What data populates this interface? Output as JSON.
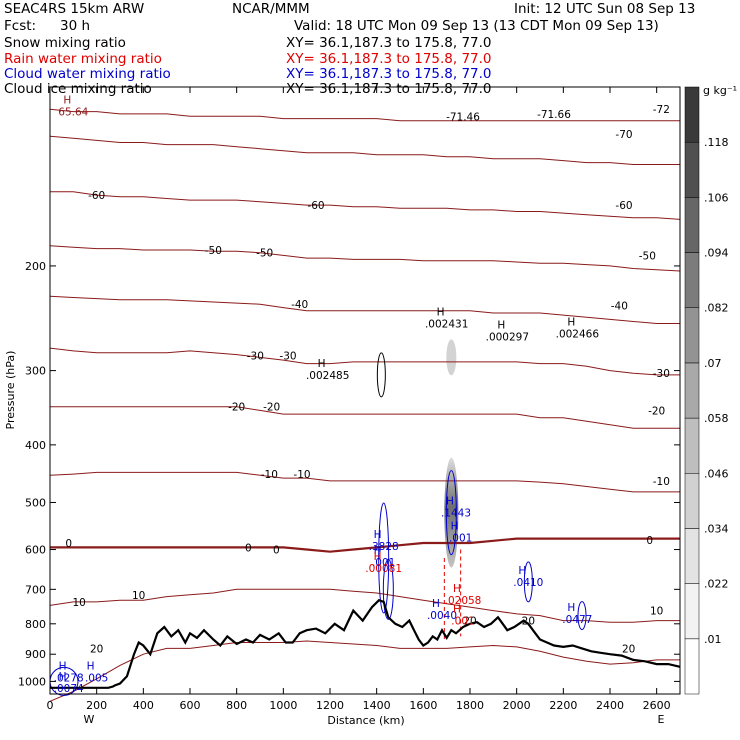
{
  "header": {
    "model_line": "SEAC4RS 15km ARW",
    "org": "NCAR/MMM",
    "init": "Init: 12 UTC Sun 08 Sep 13",
    "fcst_label": "Fcst:",
    "fcst_value": "30 h",
    "valid": "Valid: 18 UTC Mon 09 Sep 13 (13 CDT Mon 09 Sep 13)"
  },
  "fields": [
    {
      "label": "Snow mixing ratio",
      "xy": "XY=  36.1,187.3 to 175.8, 77.0",
      "color": "#000000"
    },
    {
      "label": "Rain water mixing ratio",
      "xy": "XY=  36.1,187.3 to 175.8, 77.0",
      "color": "#e00000"
    },
    {
      "label": "Cloud water mixing ratio",
      "xy": "XY=  36.1,187.3 to 175.8, 77.0",
      "color": "#0000cc"
    },
    {
      "label": "Cloud ice mixing ratio",
      "xy": "XY=  36.1,187.3 to 175.8, 77.0",
      "color": "#000000"
    }
  ],
  "chart_data": {
    "type": "contour cross-section",
    "xlabel": "Distance (km)",
    "ylabel": "Pressure (hPa)",
    "xlim": [
      0,
      2700
    ],
    "ylim": [
      1050,
      100
    ],
    "y_log": true,
    "x_ticks": [
      0,
      200,
      400,
      600,
      800,
      1000,
      1200,
      1400,
      1600,
      1800,
      2000,
      2200,
      2400,
      2600
    ],
    "y_ticks": [
      200,
      300,
      400,
      500,
      600,
      700,
      800,
      900,
      1000
    ],
    "x_ends": {
      "left": "W",
      "right": "E"
    },
    "colorbar": {
      "unit": "g kg⁻¹",
      "levels": [
        ".01",
        ".022",
        ".034",
        ".046",
        ".058",
        ".07",
        ".082",
        ".094",
        ".106",
        ".118"
      ],
      "colors": [
        "#ffffff",
        "#f2f2f2",
        "#e3e3e3",
        "#d1d1d1",
        "#bebebe",
        "#a9a9a9",
        "#939393",
        "#7c7c7c",
        "#666666",
        "#505050",
        "#3a3a3a"
      ]
    },
    "temperature_contours": [
      {
        "t": 20,
        "p": [
          1080,
          1040,
          990,
          940,
          900,
          880,
          880,
          870,
          860,
          860,
          860,
          855,
          860,
          865,
          870,
          880,
          880,
          880,
          875,
          870,
          875,
          890,
          910,
          925,
          935,
          930,
          920,
          920
        ]
      },
      {
        "t": 10,
        "p": [
          745,
          735,
          735,
          730,
          730,
          720,
          715,
          710,
          700,
          700,
          700,
          700,
          700,
          705,
          710,
          720,
          730,
          740,
          750,
          760,
          770,
          775,
          790,
          790,
          795,
          795,
          790,
          790
        ]
      },
      {
        "t": 0,
        "p": [
          595,
          595,
          595,
          595,
          595,
          595,
          595,
          595,
          595,
          595,
          595,
          600,
          605,
          600,
          595,
          590,
          585,
          585,
          585,
          580,
          575,
          575,
          575,
          575,
          575,
          575,
          575,
          575
        ]
      },
      {
        "t": -10,
        "p": [
          450,
          448,
          445,
          445,
          445,
          445,
          445,
          445,
          445,
          450,
          455,
          455,
          460,
          460,
          460,
          460,
          460,
          460,
          460,
          460,
          460,
          462,
          465,
          470,
          475,
          480,
          480,
          480
        ]
      },
      {
        "t": -20,
        "p": [
          345,
          345,
          345,
          345,
          345,
          345,
          345,
          345,
          345,
          350,
          355,
          355,
          355,
          355,
          355,
          355,
          355,
          355,
          355,
          355,
          355,
          360,
          360,
          365,
          370,
          375,
          375,
          375
        ]
      },
      {
        "t": -30,
        "p": [
          275,
          278,
          280,
          280,
          280,
          280,
          278,
          280,
          282,
          285,
          288,
          292,
          292,
          290,
          290,
          290,
          290,
          290,
          290,
          290,
          290,
          292,
          292,
          295,
          300,
          303,
          305,
          305
        ]
      },
      {
        "t": -40,
        "p": [
          225,
          226,
          227,
          228,
          228,
          228,
          229,
          230,
          231,
          232,
          235,
          238,
          238,
          238,
          238,
          238,
          238,
          238,
          238,
          240,
          240,
          240,
          242,
          244,
          246,
          248,
          250,
          250
        ]
      },
      {
        "t": -50,
        "p": [
          185,
          186,
          187,
          187,
          188,
          188,
          188,
          189,
          189,
          190,
          192,
          194,
          194,
          195,
          195,
          195,
          196,
          196,
          196,
          196,
          197,
          198,
          198,
          199,
          200,
          202,
          203,
          204
        ]
      },
      {
        "t": -60,
        "p": [
          150,
          150,
          152,
          153,
          153,
          154,
          155,
          155,
          155,
          156,
          157,
          158,
          158,
          159,
          159,
          160,
          160,
          160,
          161,
          161,
          162,
          162,
          163,
          164,
          165,
          166,
          166,
          167
        ]
      },
      {
        "t": -70,
        "p": [
          121,
          122,
          123,
          124,
          124,
          125,
          125,
          125,
          126,
          127,
          128,
          129,
          129,
          129,
          130,
          130,
          130,
          131,
          131,
          132,
          132,
          132,
          133,
          134,
          134,
          135,
          135,
          135
        ]
      },
      {
        "t": -72,
        "p": [
          109,
          110,
          110,
          111,
          111,
          111,
          112,
          112,
          112,
          112,
          113,
          113,
          113,
          113,
          113,
          114,
          114,
          114,
          114,
          114,
          114,
          114,
          114,
          114,
          114,
          114,
          114,
          114
        ]
      }
    ],
    "contour_labels": [
      {
        "text": "-72",
        "x": 2620,
        "p": 109
      },
      {
        "text": "-71.46",
        "x": 1770,
        "p": 112
      },
      {
        "text": "-71.66",
        "x": 2160,
        "p": 111
      },
      {
        "text": "-70",
        "x": 2460,
        "p": 120
      },
      {
        "text": "-60",
        "x": 200,
        "p": 152
      },
      {
        "text": "-60",
        "x": 1140,
        "p": 158
      },
      {
        "text": "-60",
        "x": 2460,
        "p": 158
      },
      {
        "text": "-50",
        "x": 700,
        "p": 188
      },
      {
        "text": "-50",
        "x": 920,
        "p": 190
      },
      {
        "text": "-50",
        "x": 2560,
        "p": 192
      },
      {
        "text": "-40",
        "x": 1070,
        "p": 232
      },
      {
        "text": "-40",
        "x": 2440,
        "p": 233
      },
      {
        "text": "-30",
        "x": 880,
        "p": 283
      },
      {
        "text": "-30",
        "x": 1020,
        "p": 283
      },
      {
        "text": "-30",
        "x": 2620,
        "p": 303
      },
      {
        "text": "-20",
        "x": 800,
        "p": 345
      },
      {
        "text": "-20",
        "x": 950,
        "p": 345
      },
      {
        "text": "-20",
        "x": 2600,
        "p": 350
      },
      {
        "text": "-10",
        "x": 940,
        "p": 448
      },
      {
        "text": "-10",
        "x": 1080,
        "p": 448
      },
      {
        "text": "-10",
        "x": 2620,
        "p": 460
      },
      {
        "text": "0",
        "x": 80,
        "p": 585
      },
      {
        "text": "0",
        "x": 850,
        "p": 595
      },
      {
        "text": "0",
        "x": 970,
        "p": 600
      },
      {
        "text": "0",
        "x": 2570,
        "p": 578
      },
      {
        "text": "10",
        "x": 125,
        "p": 735
      },
      {
        "text": "10",
        "x": 380,
        "p": 715
      },
      {
        "text": "10",
        "x": 2600,
        "p": 760
      },
      {
        "text": "20",
        "x": 200,
        "p": 880
      },
      {
        "text": "20",
        "x": 1800,
        "p": 790
      },
      {
        "text": "20",
        "x": 2050,
        "p": 790
      },
      {
        "text": "20",
        "x": 2480,
        "p": 880
      }
    ],
    "maxima": [
      {
        "text": ".002485",
        "x": 1190,
        "p": 305,
        "color": "#000000"
      },
      {
        "text": ".002431",
        "x": 1700,
        "p": 250,
        "color": "#000000"
      },
      {
        "text": ".000297",
        "x": 1960,
        "p": 263,
        "color": "#000000"
      },
      {
        "text": ".002466",
        "x": 2260,
        "p": 260,
        "color": "#000000"
      },
      {
        "text": ".1443",
        "x": 1740,
        "p": 520,
        "color": "#0000cc"
      },
      {
        "text": ".001",
        "x": 1760,
        "p": 573,
        "color": "#0000cc"
      },
      {
        "text": ".3828",
        "x": 1430,
        "p": 592,
        "color": "#0000cc"
      },
      {
        "text": ".001",
        "x": 1430,
        "p": 630,
        "color": "#0000cc"
      },
      {
        "text": ".00081",
        "x": 1430,
        "p": 645,
        "color": "#e00000"
      },
      {
        "text": ".0410",
        "x": 2050,
        "p": 680,
        "color": "#0000cc"
      },
      {
        "text": ".02058",
        "x": 1770,
        "p": 730,
        "color": "#e00000"
      },
      {
        "text": ".0040",
        "x": 1680,
        "p": 773,
        "color": "#0000cc"
      },
      {
        "text": ".001",
        "x": 1770,
        "p": 790,
        "color": "#e00000"
      },
      {
        "text": ".0477",
        "x": 2260,
        "p": 785,
        "color": "#0000cc"
      },
      {
        "text": "65.64",
        "x": 100,
        "p": 110,
        "color": "#8b1a1a"
      },
      {
        "text": ".0278",
        "x": 80,
        "p": 985,
        "color": "#0000cc"
      },
      {
        "text": ".005",
        "x": 200,
        "p": 985,
        "color": "#0000cc"
      },
      {
        "text": ".0074",
        "x": 80,
        "p": 1025,
        "color": "#0000cc"
      }
    ],
    "terrain": {
      "x": [
        0,
        100,
        200,
        250,
        270,
        280,
        300,
        330,
        360,
        380,
        400,
        430,
        460,
        490,
        520,
        550,
        580,
        600,
        630,
        660,
        700,
        730,
        760,
        800,
        840,
        870,
        900,
        940,
        980,
        1010,
        1040,
        1070,
        1100,
        1140,
        1180,
        1220,
        1260,
        1300,
        1340,
        1380,
        1410,
        1430,
        1450,
        1480,
        1510,
        1540,
        1560,
        1580,
        1600,
        1620,
        1640,
        1660,
        1680,
        1700,
        1720,
        1740,
        1770,
        1800,
        1830,
        1860,
        1890,
        1920,
        1940,
        1960,
        1990,
        2010,
        2030,
        2050,
        2080,
        2100,
        2130,
        2160,
        2200,
        2240,
        2280,
        2320,
        2360,
        2400,
        2450,
        2500,
        2550,
        2600,
        2650,
        2700
      ],
      "p": [
        1025,
        1025,
        1025,
        1025,
        1020,
        1015,
        1008,
        980,
        900,
        860,
        870,
        900,
        830,
        810,
        840,
        820,
        860,
        830,
        845,
        820,
        850,
        870,
        840,
        865,
        850,
        860,
        835,
        850,
        830,
        860,
        860,
        830,
        820,
        815,
        830,
        800,
        820,
        760,
        790,
        750,
        730,
        735,
        780,
        800,
        810,
        790,
        820,
        850,
        870,
        860,
        840,
        850,
        820,
        845,
        820,
        830,
        810,
        800,
        795,
        810,
        800,
        780,
        800,
        820,
        810,
        800,
        790,
        800,
        830,
        850,
        860,
        870,
        875,
        870,
        880,
        890,
        895,
        900,
        905,
        920,
        925,
        935,
        935,
        945
      ]
    }
  }
}
